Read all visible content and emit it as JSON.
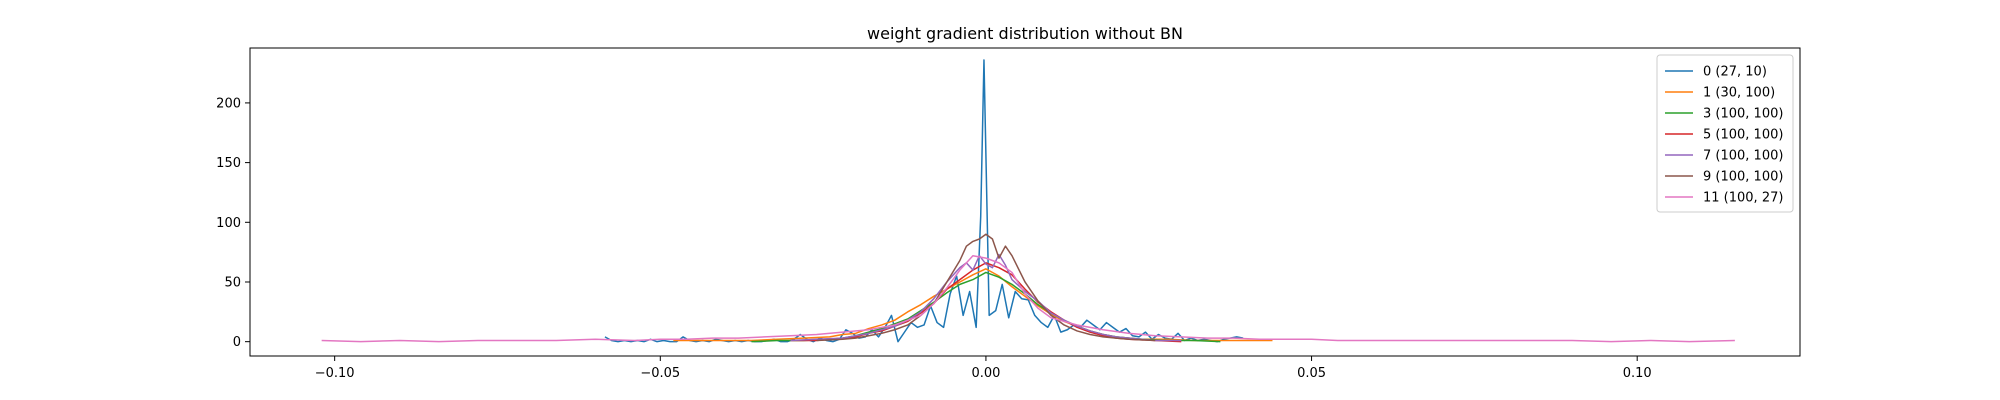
{
  "chart_data": {
    "type": "line",
    "title": "weight gradient distribution without BN",
    "xlabel": "",
    "ylabel": "",
    "xlim": [
      -0.113,
      0.125
    ],
    "ylim": [
      -12,
      246
    ],
    "xticks": [
      -0.1,
      -0.05,
      0.0,
      0.05,
      0.1
    ],
    "xtick_labels": [
      "−0.10",
      "−0.05",
      "0.00",
      "0.05",
      "0.10"
    ],
    "yticks": [
      0,
      50,
      100,
      150,
      200
    ],
    "ytick_labels": [
      "0",
      "50",
      "100",
      "150",
      "200"
    ],
    "grid": false,
    "legend_position": "top-right",
    "series": [
      {
        "name": "0 (27, 10)",
        "color": "#1f77b4",
        "x": [
          -0.0585,
          -0.0575,
          -0.0565,
          -0.0555,
          -0.0545,
          -0.0535,
          -0.0525,
          -0.0515,
          -0.0505,
          -0.0495,
          -0.0485,
          -0.0475,
          -0.0465,
          -0.0455,
          -0.0445,
          -0.0435,
          -0.0425,
          -0.0415,
          -0.0405,
          -0.0395,
          -0.0385,
          -0.0375,
          -0.0365,
          -0.0355,
          -0.0345,
          -0.0335,
          -0.0325,
          -0.0315,
          -0.0305,
          -0.0295,
          -0.0285,
          -0.0275,
          -0.0265,
          -0.0255,
          -0.0245,
          -0.0235,
          -0.0225,
          -0.0215,
          -0.0205,
          -0.0195,
          -0.0185,
          -0.0175,
          -0.0165,
          -0.0155,
          -0.0145,
          -0.0135,
          -0.0125,
          -0.0115,
          -0.0105,
          -0.0095,
          -0.0085,
          -0.0075,
          -0.0065,
          -0.0055,
          -0.0045,
          -0.0035,
          -0.0025,
          -0.0015,
          -0.0008,
          -0.0003,
          0.0005,
          0.0015,
          0.0025,
          0.0035,
          0.0045,
          0.0055,
          0.0065,
          0.0075,
          0.0085,
          0.0095,
          0.0105,
          0.0115,
          0.0125,
          0.0135,
          0.0145,
          0.0155,
          0.0165,
          0.0175,
          0.0185,
          0.0195,
          0.0205,
          0.0215,
          0.0225,
          0.0235,
          0.0245,
          0.0255,
          0.0265,
          0.0275,
          0.0285,
          0.0295,
          0.0305,
          0.0315,
          0.0325,
          0.0335,
          0.0345,
          0.0355,
          0.0365,
          0.0375,
          0.0385,
          0.0395
        ],
        "y": [
          4,
          1,
          0,
          1,
          0,
          1,
          0,
          2,
          0,
          1,
          0,
          0,
          4,
          1,
          0,
          1,
          0,
          2,
          1,
          0,
          1,
          0,
          1,
          0,
          0,
          1,
          2,
          0,
          0,
          2,
          6,
          2,
          0,
          3,
          1,
          0,
          2,
          10,
          7,
          3,
          4,
          10,
          4,
          12,
          22,
          0,
          8,
          16,
          12,
          14,
          30,
          16,
          12,
          40,
          55,
          22,
          42,
          12,
          105,
          236,
          22,
          26,
          48,
          20,
          42,
          36,
          35,
          22,
          16,
          12,
          22,
          8,
          10,
          14,
          12,
          18,
          14,
          10,
          16,
          12,
          8,
          11,
          5,
          4,
          8,
          2,
          6,
          3,
          2,
          7,
          1,
          3,
          1,
          2,
          1,
          0,
          2,
          3,
          4,
          3
        ]
      },
      {
        "name": "1 (30, 100)",
        "color": "#ff7f0e",
        "x": [
          -0.048,
          -0.044,
          -0.04,
          -0.036,
          -0.032,
          -0.028,
          -0.024,
          -0.022,
          -0.02,
          -0.018,
          -0.016,
          -0.014,
          -0.012,
          -0.01,
          -0.008,
          -0.006,
          -0.004,
          -0.002,
          0.0,
          0.002,
          0.004,
          0.006,
          0.008,
          0.01,
          0.012,
          0.014,
          0.016,
          0.018,
          0.02,
          0.022,
          0.024,
          0.028,
          0.032,
          0.036,
          0.04,
          0.044
        ],
        "y": [
          1,
          1,
          1,
          1,
          2,
          3,
          4,
          6,
          7,
          11,
          14,
          18,
          25,
          31,
          38,
          44,
          50,
          56,
          61,
          55,
          46,
          38,
          30,
          23,
          17,
          13,
          9,
          6,
          4,
          3,
          2,
          2,
          1,
          1,
          1,
          1
        ]
      },
      {
        "name": "3 (100, 100)",
        "color": "#2ca02c",
        "x": [
          -0.036,
          -0.032,
          -0.028,
          -0.024,
          -0.022,
          -0.02,
          -0.018,
          -0.016,
          -0.014,
          -0.012,
          -0.01,
          -0.008,
          -0.006,
          -0.004,
          -0.002,
          0.0,
          0.002,
          0.004,
          0.006,
          0.008,
          0.01,
          0.012,
          0.014,
          0.016,
          0.018,
          0.02,
          0.022,
          0.024,
          0.028,
          0.032,
          0.036
        ],
        "y": [
          0,
          1,
          1,
          2,
          3,
          5,
          8,
          11,
          15,
          19,
          26,
          33,
          41,
          48,
          52,
          58,
          54,
          48,
          40,
          31,
          24,
          18,
          13,
          9,
          6,
          4,
          3,
          2,
          1,
          1,
          0
        ]
      },
      {
        "name": "5 (100, 100)",
        "color": "#d62728",
        "x": [
          -0.03,
          -0.026,
          -0.022,
          -0.02,
          -0.018,
          -0.016,
          -0.014,
          -0.012,
          -0.01,
          -0.008,
          -0.006,
          -0.004,
          -0.002,
          0.0,
          0.002,
          0.004,
          0.006,
          0.008,
          0.01,
          0.012,
          0.014,
          0.016,
          0.018,
          0.02,
          0.022,
          0.026,
          0.03
        ],
        "y": [
          1,
          1,
          3,
          4,
          7,
          9,
          13,
          17,
          24,
          32,
          44,
          52,
          60,
          66,
          62,
          56,
          44,
          33,
          25,
          18,
          12,
          8,
          5,
          3,
          2,
          1,
          0
        ]
      },
      {
        "name": "7 (100, 100)",
        "color": "#9467bd",
        "x": [
          -0.03,
          -0.026,
          -0.022,
          -0.02,
          -0.018,
          -0.016,
          -0.014,
          -0.012,
          -0.01,
          -0.008,
          -0.006,
          -0.004,
          -0.003,
          -0.002,
          -0.001,
          0.0,
          0.001,
          0.002,
          0.003,
          0.004,
          0.006,
          0.008,
          0.01,
          0.012,
          0.014,
          0.016,
          0.018,
          0.02,
          0.022,
          0.026,
          0.03
        ],
        "y": [
          1,
          2,
          3,
          5,
          7,
          10,
          13,
          18,
          25,
          36,
          50,
          62,
          66,
          60,
          72,
          65,
          62,
          73,
          64,
          52,
          42,
          34,
          24,
          18,
          13,
          9,
          6,
          4,
          3,
          1,
          1
        ]
      },
      {
        "name": "9 (100, 100)",
        "color": "#8c564b",
        "x": [
          -0.026,
          -0.022,
          -0.02,
          -0.018,
          -0.016,
          -0.014,
          -0.012,
          -0.01,
          -0.008,
          -0.006,
          -0.004,
          -0.003,
          -0.002,
          -0.001,
          0.0,
          0.001,
          0.002,
          0.003,
          0.004,
          0.006,
          0.008,
          0.01,
          0.012,
          0.014,
          0.016,
          0.018,
          0.02,
          0.022,
          0.026
        ],
        "y": [
          1,
          2,
          3,
          5,
          7,
          10,
          14,
          22,
          32,
          50,
          68,
          80,
          84,
          86,
          90,
          86,
          70,
          80,
          72,
          50,
          34,
          22,
          14,
          9,
          6,
          4,
          3,
          2,
          1
        ]
      },
      {
        "name": "11 (100, 27)",
        "color": "#e377c2",
        "x": [
          -0.102,
          -0.096,
          -0.09,
          -0.084,
          -0.078,
          -0.072,
          -0.066,
          -0.06,
          -0.054,
          -0.05,
          -0.046,
          -0.042,
          -0.038,
          -0.034,
          -0.03,
          -0.026,
          -0.022,
          -0.018,
          -0.014,
          -0.01,
          -0.008,
          -0.006,
          -0.004,
          -0.002,
          0.0,
          0.002,
          0.004,
          0.006,
          0.008,
          0.01,
          0.014,
          0.018,
          0.022,
          0.026,
          0.03,
          0.034,
          0.038,
          0.042,
          0.046,
          0.05,
          0.054,
          0.06,
          0.066,
          0.072,
          0.078,
          0.084,
          0.09,
          0.096,
          0.102,
          0.108,
          0.115
        ],
        "y": [
          1,
          0,
          1,
          0,
          1,
          1,
          1,
          2,
          1,
          2,
          2,
          3,
          3,
          4,
          5,
          6,
          8,
          10,
          14,
          22,
          32,
          45,
          60,
          72,
          70,
          66,
          58,
          40,
          28,
          20,
          14,
          10,
          7,
          5,
          4,
          3,
          3,
          2,
          2,
          2,
          1,
          1,
          1,
          1,
          1,
          1,
          1,
          0,
          1,
          0,
          1
        ]
      }
    ]
  }
}
